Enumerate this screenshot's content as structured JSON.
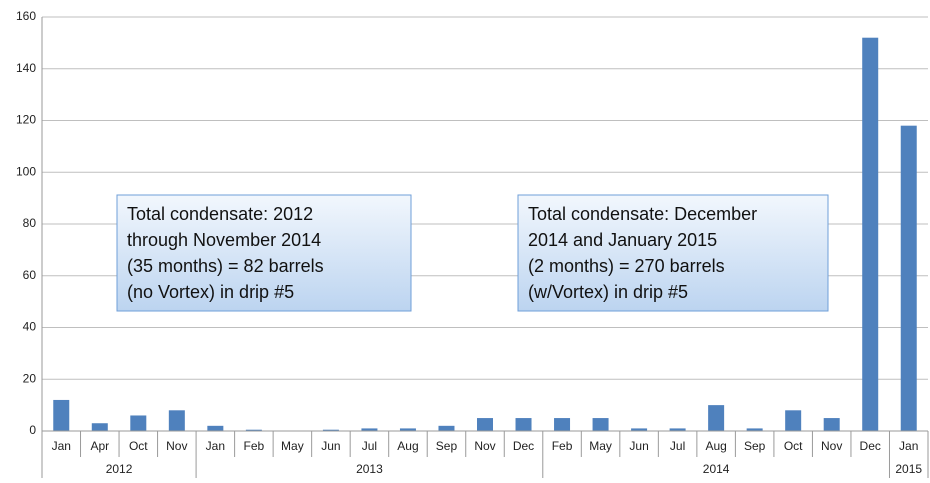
{
  "chart_data": {
    "type": "bar",
    "color": "#4f81bd",
    "ylim": [
      0,
      160
    ],
    "yticks": [
      0,
      20,
      40,
      60,
      80,
      100,
      120,
      140,
      160
    ],
    "grid": true,
    "groups": [
      {
        "name": "2012",
        "categories": [
          "Jan",
          "Apr",
          "Oct",
          "Nov"
        ],
        "values": [
          12,
          3,
          6,
          8
        ]
      },
      {
        "name": "2013",
        "categories": [
          "Jan",
          "Feb",
          "May",
          "Jun",
          "Jul",
          "Aug",
          "Sep",
          "Nov",
          "Dec"
        ],
        "values": [
          2,
          0.5,
          0,
          0.5,
          1,
          1,
          2,
          5,
          5
        ]
      },
      {
        "name": "2014",
        "categories": [
          "Feb",
          "May",
          "Jun",
          "Jul",
          "Aug",
          "Sep",
          "Oct",
          "Nov",
          "Dec"
        ],
        "values": [
          5,
          5,
          1,
          1,
          10,
          1,
          8,
          5,
          152
        ]
      },
      {
        "name": "2015",
        "categories": [
          "Jan"
        ],
        "values": [
          118
        ]
      }
    ],
    "annotations": [
      {
        "lines": [
          "Total condensate: 2012",
          "through November 2014",
          " (35 months) = 82 barrels",
          "(no Vortex) in drip #5"
        ]
      },
      {
        "lines": [
          "Total condensate: December",
          "2014 and January 2015",
          "(2 months) = 270 barrels",
          "(w/Vortex) in drip #5"
        ]
      }
    ]
  }
}
